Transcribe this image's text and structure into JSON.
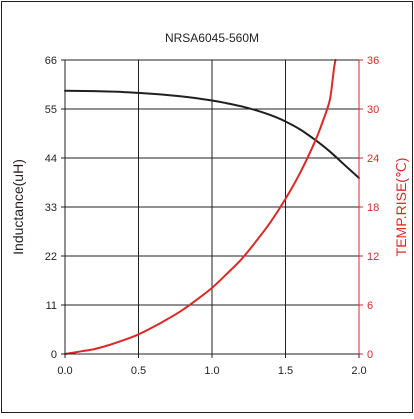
{
  "chart_data": {
    "type": "line",
    "title": "NRSA6045-560M",
    "xlabel": "",
    "ylabel": "Inductance(uH)",
    "y2label": "TEMP.RISE(℃)",
    "xlim": [
      0.0,
      2.0
    ],
    "ylim": [
      0,
      66
    ],
    "y2lim": [
      0,
      36
    ],
    "x_ticks": [
      "0.0",
      "0.5",
      "1.0",
      "1.5",
      "2.0"
    ],
    "y_ticks": [
      "0",
      "11",
      "22",
      "33",
      "44",
      "55",
      "66"
    ],
    "y2_ticks": [
      "0",
      "6",
      "12",
      "18",
      "24",
      "30",
      "36"
    ],
    "grid": true,
    "legend": "none",
    "colors": {
      "inductance": "#231f20",
      "temp_rise": "#d92a27",
      "axis": "#231f20",
      "grid": "#231f20",
      "frame": "#231f20"
    },
    "series": [
      {
        "key": "inductance",
        "axis": "left",
        "x": [
          0.0,
          0.2,
          0.4,
          0.6,
          0.8,
          1.0,
          1.1,
          1.2,
          1.3,
          1.4,
          1.5,
          1.6,
          1.7,
          1.8,
          1.9,
          2.0
        ],
        "values": [
          59.1,
          59.0,
          58.8,
          58.4,
          57.8,
          56.9,
          56.3,
          55.6,
          54.7,
          53.6,
          52.2,
          50.4,
          48.1,
          45.5,
          42.5,
          39.5
        ]
      },
      {
        "key": "temp_rise",
        "axis": "right",
        "x": [
          0.0,
          0.1,
          0.2,
          0.3,
          0.4,
          0.5,
          0.6,
          0.7,
          0.8,
          0.9,
          1.0,
          1.1,
          1.2,
          1.3,
          1.4,
          1.5,
          1.6,
          1.7,
          1.75,
          1.8,
          1.82,
          1.83,
          1.84
        ],
        "values": [
          0.0,
          0.3,
          0.6,
          1.1,
          1.7,
          2.4,
          3.3,
          4.3,
          5.4,
          6.7,
          8.1,
          9.8,
          11.6,
          13.8,
          16.2,
          19.0,
          22.2,
          26.0,
          28.3,
          31.0,
          33.5,
          35.0,
          36.0
        ]
      }
    ]
  }
}
